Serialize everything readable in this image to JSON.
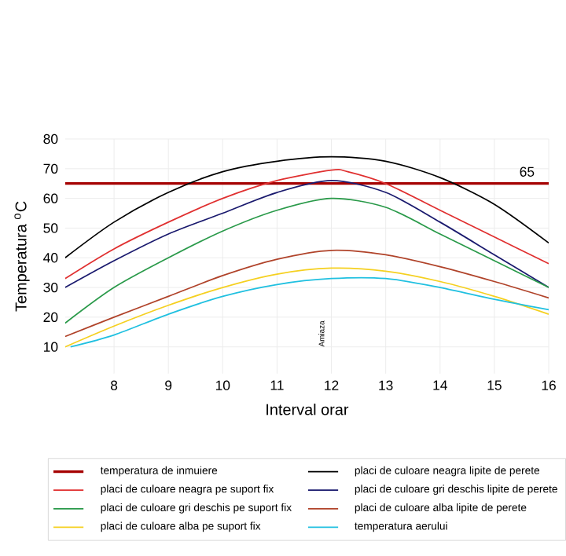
{
  "chart_data": {
    "type": "line",
    "xlabel": "Interval orar",
    "ylabel": "Temperatura $^{o}$C",
    "xlim": [
      7.1,
      16
    ],
    "ylim": [
      1,
      80
    ],
    "xticks": [
      8,
      9,
      10,
      11,
      12,
      13,
      14,
      15,
      16
    ],
    "yticks": [
      10,
      20,
      30,
      40,
      50,
      60,
      70,
      80
    ],
    "grid": true,
    "legend": "bottom",
    "marker": "none",
    "line_style": "solid",
    "annotations": [
      {
        "text": "65",
        "x": 15.6,
        "y": 65
      },
      "Amiaza"
    ],
    "series": [
      {
        "name": "temperatura de inmuiere",
        "color": "#a50000",
        "x": [
          7.1,
          16
        ],
        "values": [
          65,
          65
        ]
      },
      {
        "name": "placi de culoare neagra lipite de perete",
        "color": "#000000",
        "x": [
          7.1,
          8,
          9,
          10,
          11,
          12,
          13,
          14,
          15,
          16
        ],
        "values": [
          40,
          52,
          62,
          69,
          72.5,
          74,
          72.5,
          67,
          58,
          45
        ]
      },
      {
        "name": "placi de culoare neagra pe suport fix",
        "color": "#e03030",
        "x": [
          7.1,
          8,
          9,
          10,
          11,
          12,
          12.3,
          13,
          14,
          15,
          16
        ],
        "values": [
          33,
          43,
          52,
          60,
          66,
          69.5,
          69,
          65,
          56,
          47,
          38
        ]
      },
      {
        "name": "placi de culoare gri deschis lipite de perete",
        "color": "#1a1a6e",
        "x": [
          7.1,
          8,
          9,
          10,
          11,
          12,
          13,
          14,
          15,
          16
        ],
        "values": [
          30,
          39,
          48,
          55,
          62,
          66,
          62,
          52,
          41,
          30
        ]
      },
      {
        "name": "placi de culoare gri deschis pe suport fix",
        "color": "#2a9a4a",
        "x": [
          7.1,
          8,
          9,
          10,
          11,
          12,
          13,
          14,
          15,
          16
        ],
        "values": [
          18,
          30,
          40,
          49,
          56,
          60,
          57,
          48,
          39,
          30
        ]
      },
      {
        "name": "placi de culoare alba lipite de perete",
        "color": "#b0432a",
        "x": [
          7.1,
          8,
          9,
          10,
          11,
          12,
          13,
          14,
          15,
          16
        ],
        "values": [
          13.5,
          20,
          27,
          34,
          39.5,
          42.5,
          41,
          37,
          32,
          26.5
        ]
      },
      {
        "name": "placi de culoare alba pe suport fix",
        "color": "#f5d020",
        "x": [
          7.1,
          8,
          9,
          10,
          11,
          12,
          13,
          14,
          15,
          16
        ],
        "values": [
          10,
          17,
          24,
          30,
          34.5,
          36.5,
          35.5,
          32,
          27,
          21
        ]
      },
      {
        "name": "temperatura aerului",
        "color": "#20c0e0",
        "x": [
          7.2,
          8,
          9,
          10,
          11,
          12,
          13,
          14,
          15,
          16
        ],
        "values": [
          10,
          14,
          21,
          27,
          31,
          33,
          33,
          30,
          26,
          22.5
        ]
      }
    ]
  }
}
